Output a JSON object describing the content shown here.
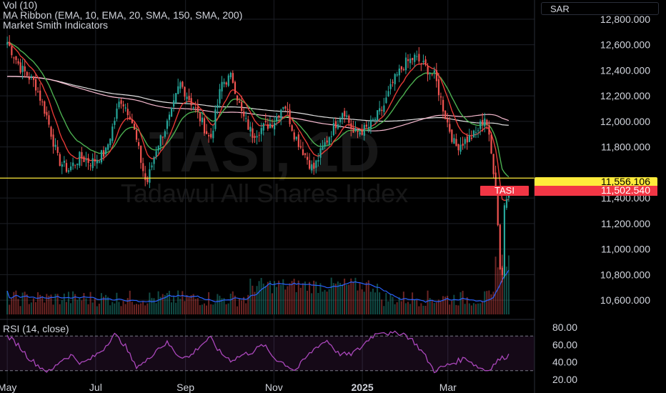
{
  "legend": {
    "line1": "Vol (10)",
    "line2": "MA Ribbon (EMA, 10, EMA, 20, SMA, 150, SMA, 200)",
    "line3": "Market Smith Indicators"
  },
  "currency": "SAR",
  "watermark": "TASI, 1D",
  "watermark_sub": "Tadawul All Shares Index",
  "rsi_label": "RSI (14, close)",
  "price_badges": {
    "hline_value": "11,556.106",
    "symbol": "TASI",
    "last_price": "11,502.540"
  },
  "colors": {
    "up": "#26a69a",
    "down": "#ef5350",
    "ema10": "#e53935",
    "ema20": "#4caf50",
    "sma150": "#f8bbd0",
    "sma200": "#e0e0e0",
    "vol_ma": "#2962ff",
    "rsi": "#ab47bc",
    "hline": "#ffeb3b"
  },
  "chart_data": [
    {
      "type": "candlestick",
      "title": "TASI, 1D",
      "ylim": [
        10450,
        12950
      ],
      "y_ticks": [
        "12,800.000",
        "12,600.000",
        "12,400.000",
        "12,200.000",
        "12,000.000",
        "11,800.000",
        "11,400.000",
        "11,200.000",
        "11,000.000",
        "10,800.000",
        "10,600.000"
      ],
      "x_ticks": [
        "May",
        "Jul",
        "Sep",
        "Nov",
        "2025",
        "Mar"
      ],
      "horizontal_line": 11556.106,
      "last_price": 11502.54,
      "close_path": [
        [
          "2024-05-01",
          12620
        ],
        [
          "2024-05-10",
          12420
        ],
        [
          "2024-05-20",
          12300
        ],
        [
          "2024-05-28",
          12050
        ],
        [
          "2024-06-05",
          11700
        ],
        [
          "2024-06-12",
          11620
        ],
        [
          "2024-06-20",
          11720
        ],
        [
          "2024-06-28",
          11680
        ],
        [
          "2024-07-08",
          11760
        ],
        [
          "2024-07-18",
          12180
        ],
        [
          "2024-07-25",
          12050
        ],
        [
          "2024-08-05",
          11500
        ],
        [
          "2024-08-12",
          11800
        ],
        [
          "2024-08-22",
          12050
        ],
        [
          "2024-08-28",
          12300
        ],
        [
          "2024-09-05",
          12150
        ],
        [
          "2024-09-12",
          12000
        ],
        [
          "2024-09-18",
          11850
        ],
        [
          "2024-09-26",
          12300
        ],
        [
          "2024-10-03",
          12350
        ],
        [
          "2024-10-10",
          12050
        ],
        [
          "2024-10-17",
          11900
        ],
        [
          "2024-10-24",
          11950
        ],
        [
          "2024-11-01",
          12000
        ],
        [
          "2024-11-08",
          12150
        ],
        [
          "2024-11-15",
          11900
        ],
        [
          "2024-11-22",
          11750
        ],
        [
          "2024-11-28",
          11620
        ],
        [
          "2024-12-05",
          11800
        ],
        [
          "2024-12-12",
          11950
        ],
        [
          "2024-12-19",
          12100
        ],
        [
          "2024-12-26",
          11900
        ],
        [
          "2025-01-05",
          11950
        ],
        [
          "2025-01-15",
          12100
        ],
        [
          "2025-01-22",
          12300
        ],
        [
          "2025-01-30",
          12450
        ],
        [
          "2025-02-06",
          12500
        ],
        [
          "2025-02-13",
          12430
        ],
        [
          "2025-02-20",
          12350
        ],
        [
          "2025-02-27",
          12050
        ],
        [
          "2025-03-06",
          11800
        ],
        [
          "2025-03-13",
          11850
        ],
        [
          "2025-03-20",
          11900
        ],
        [
          "2025-03-27",
          12050
        ],
        [
          "2025-04-03",
          11500
        ],
        [
          "2025-04-07",
          10640
        ],
        [
          "2025-04-09",
          11350
        ],
        [
          "2025-04-13",
          11502
        ]
      ]
    },
    {
      "type": "line",
      "title": "RSI (14, close)",
      "ylim": [
        15,
        85
      ],
      "y_ticks": [
        "80.00",
        "60.00",
        "40.00",
        "20.00"
      ],
      "bands": [
        30,
        70
      ],
      "series": [
        {
          "values": [
            70,
            60,
            45,
            35,
            28,
            42,
            48,
            38,
            45,
            55,
            72,
            60,
            35,
            40,
            55,
            62,
            48,
            45,
            58,
            68,
            50,
            42,
            48,
            52,
            60,
            45,
            38,
            30,
            45,
            58,
            65,
            50,
            48,
            55,
            68,
            76,
            72,
            74,
            65,
            50,
            30,
            35,
            40,
            45,
            35,
            30,
            42,
            48
          ]
        }
      ]
    }
  ]
}
